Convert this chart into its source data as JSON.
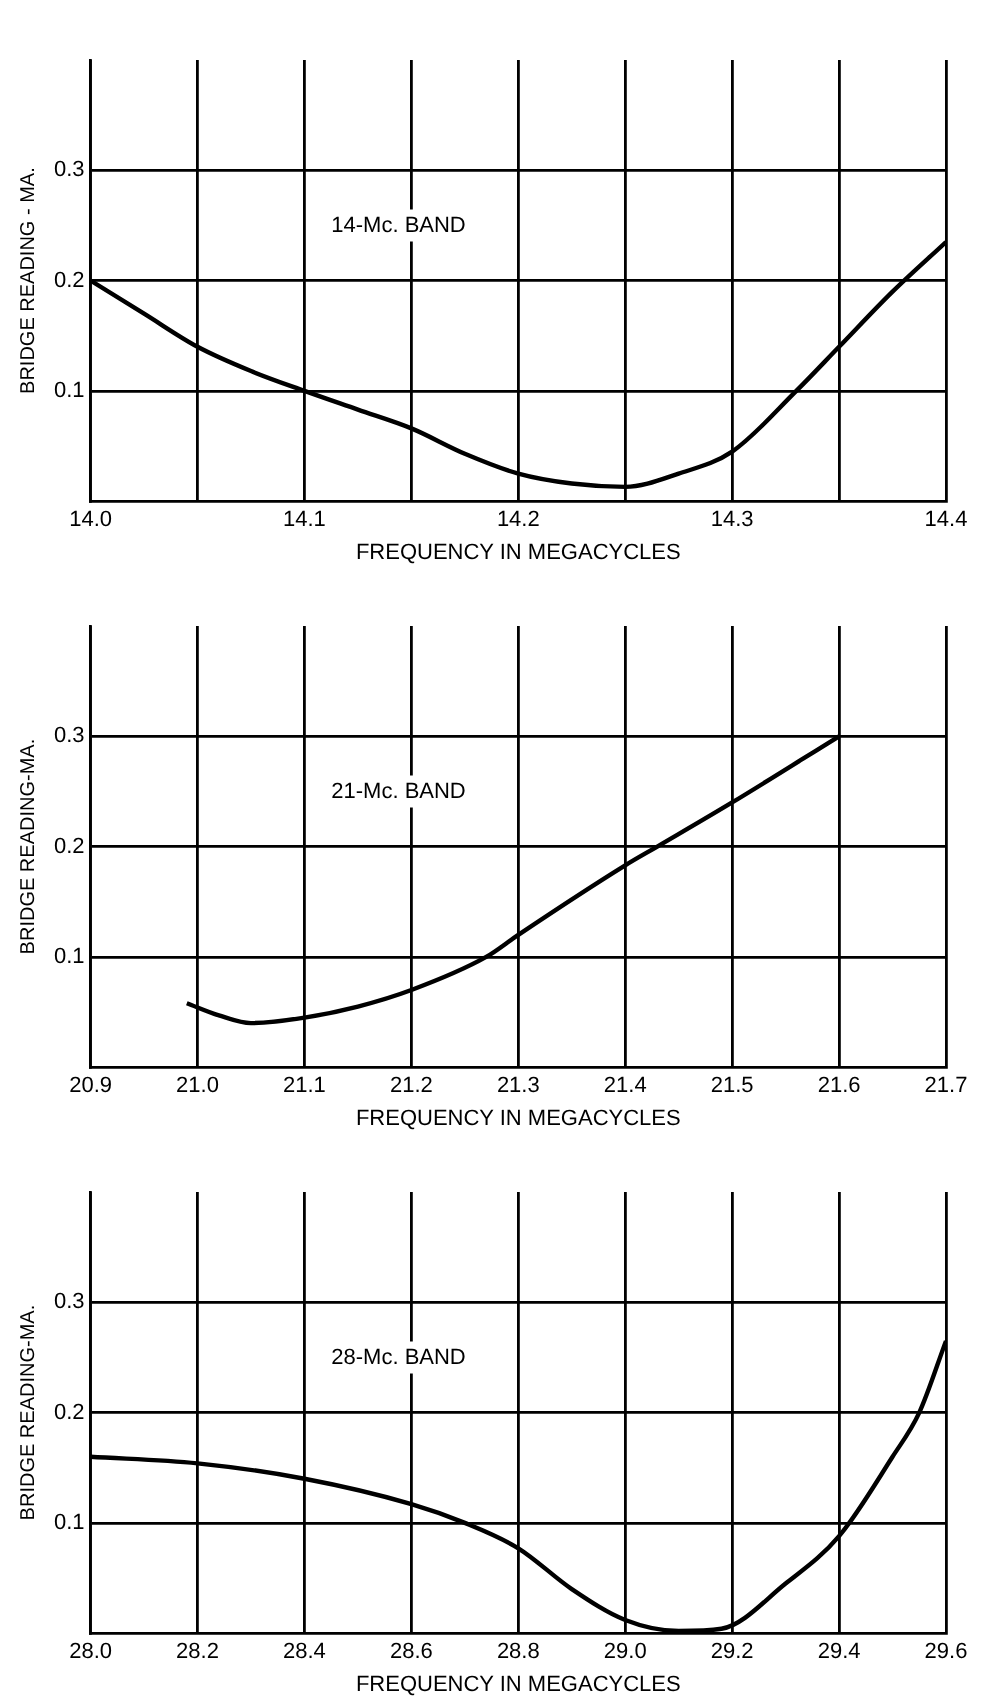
{
  "chart_data": [
    {
      "type": "line",
      "xlabel": "FREQUENCY IN MEGACYCLES",
      "ylabel": "BRIDGE READING - MA.",
      "annotations": [
        "14-Mc. BAND"
      ],
      "xlim": [
        14.0,
        14.4
      ],
      "xticks": [
        {
          "value": 14,
          "label": "14.0"
        },
        {
          "value": 14.05,
          "label": null
        },
        14.1,
        {
          "value": 14.15,
          "label": null
        },
        14.2,
        {
          "value": 14.25,
          "label": null
        },
        14.3,
        {
          "value": 14.35,
          "label": null
        },
        14.4
      ],
      "ylim": [
        0,
        0.4
      ],
      "yticks": [
        0.1,
        0.2,
        0.3
      ],
      "grid": true,
      "marker": "none",
      "line_style": "solid",
      "series": [
        {
          "color": "#000000",
          "x": [
            14.0,
            14.025,
            14.05,
            14.075,
            14.1,
            14.125,
            14.15,
            14.175,
            14.2,
            14.225,
            14.25,
            14.275,
            14.3,
            14.33,
            14.35,
            14.375,
            14.4
          ],
          "values": [
            0.2,
            0.17,
            0.14,
            0.118,
            0.1,
            0.083,
            0.066,
            0.043,
            0.025,
            0.016,
            0.013,
            0.025,
            0.045,
            0.1,
            0.14,
            0.19,
            0.235
          ]
        }
      ]
    },
    {
      "type": "line",
      "xlabel": "FREQUENCY IN MEGACYCLES",
      "ylabel": "BRIDGE READING-MA.",
      "annotations": [
        "21-Mc. BAND"
      ],
      "xlim": [
        20.9,
        21.7
      ],
      "xticks": [
        20.9,
        {
          "value": 21,
          "label": "21.0"
        },
        21.1,
        21.2,
        21.3,
        21.4,
        21.5,
        21.6,
        21.7
      ],
      "ylim": [
        0,
        0.4
      ],
      "yticks": [
        0.1,
        0.2,
        0.3
      ],
      "grid": true,
      "marker": "none",
      "line_style": "solid",
      "series": [
        {
          "color": "#000000",
          "x": [
            20.99,
            21.02,
            21.05,
            21.1,
            21.15,
            21.2,
            21.27,
            21.3,
            21.4,
            21.43,
            21.5,
            21.6
          ],
          "values": [
            0.058,
            0.047,
            0.04,
            0.045,
            0.055,
            0.07,
            0.1,
            0.12,
            0.183,
            0.2,
            0.24,
            0.3
          ]
        }
      ]
    },
    {
      "type": "line",
      "xlabel": "FREQUENCY IN MEGACYCLES",
      "ylabel": "BRIDGE READING-MA.",
      "annotations": [
        "28-Mc. BAND"
      ],
      "xlim": [
        28.0,
        29.6
      ],
      "xticks": [
        {
          "value": 28,
          "label": "28.0"
        },
        28.2,
        28.4,
        28.6,
        28.8,
        {
          "value": 29,
          "label": "29.0"
        },
        29.2,
        29.4,
        29.6
      ],
      "ylim": [
        0,
        0.4
      ],
      "yticks": [
        0.1,
        0.2,
        0.3
      ],
      "grid": true,
      "marker": "none",
      "line_style": "solid",
      "series": [
        {
          "color": "#000000",
          "x": [
            28.0,
            28.2,
            28.4,
            28.6,
            28.7,
            28.8,
            28.9,
            29.0,
            29.1,
            29.18,
            29.3,
            29.4,
            29.5,
            29.55,
            29.6
          ],
          "values": [
            0.16,
            0.154,
            0.14,
            0.117,
            0.1,
            0.077,
            0.04,
            0.012,
            0.002,
            0.004,
            0.045,
            0.088,
            0.16,
            0.2,
            0.265
          ]
        }
      ]
    }
  ]
}
